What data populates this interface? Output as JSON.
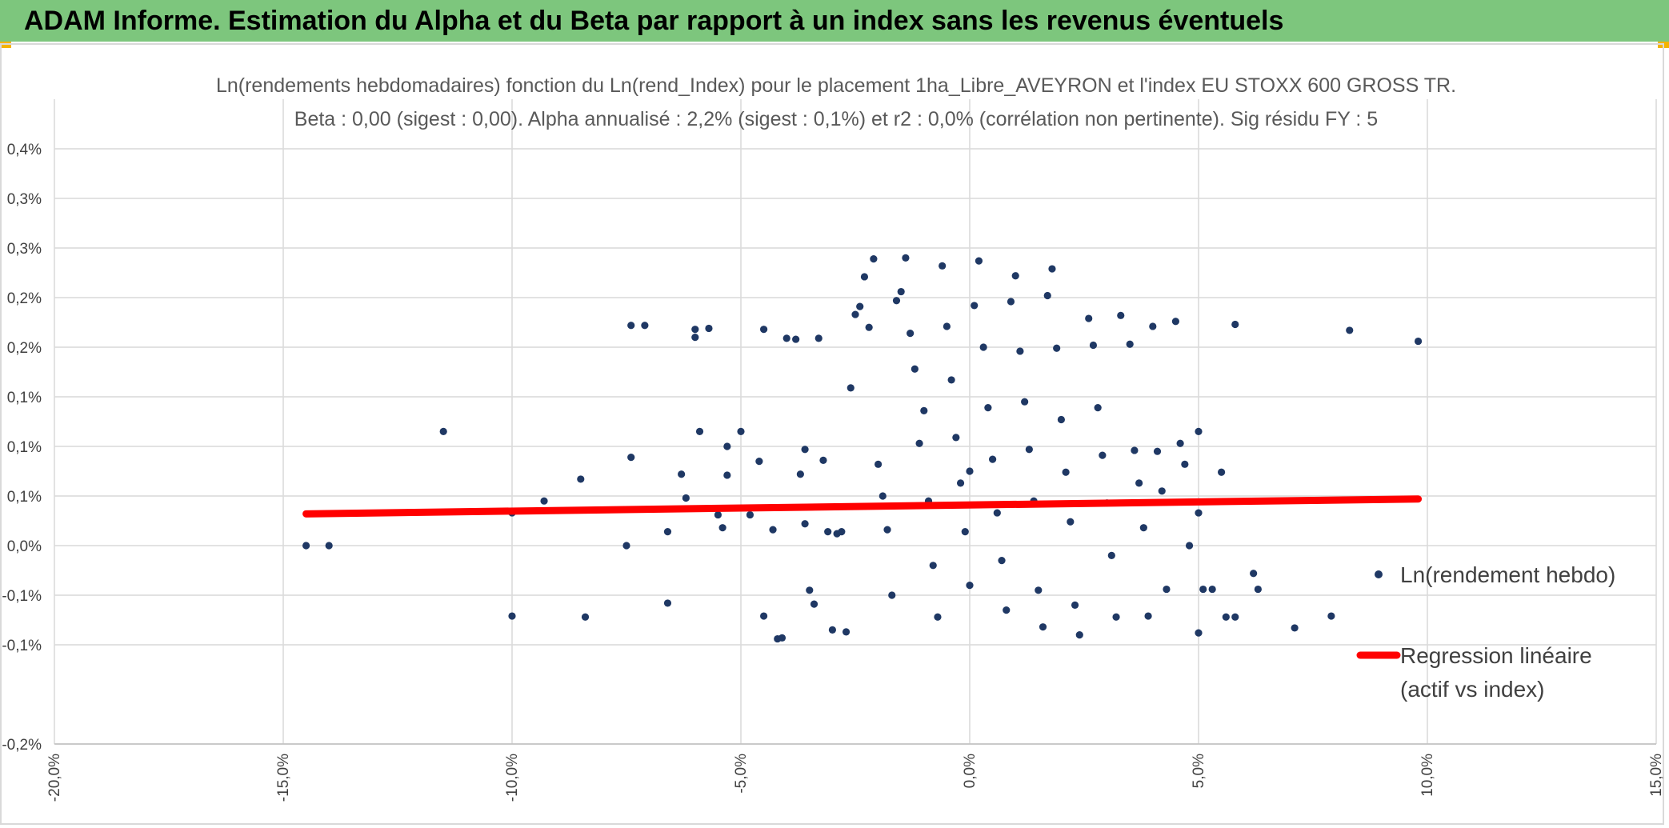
{
  "banner": {
    "title": "ADAM Informe. Estimation du Alpha et du Beta par rapport à un index sans les revenus éventuels",
    "color": "#7dc67d"
  },
  "chart_data": {
    "type": "scatter",
    "title": "Ln(rendements hebdomadaires) fonction du Ln(rend_Index) pour le placement 1ha_Libre_AVEYRON et l'index EU STOXX 600 GROSS TR.",
    "subtitle": "Beta : 0,00 (sigest : 0,00). Alpha annualisé : 2,2% (sigest : 0,1%) et r2 : 0,0% (corrélation non pertinente). Sig résidu FY : 5",
    "xlabel": "",
    "ylabel": "",
    "xlim": [
      -0.2,
      0.15
    ],
    "ylim": [
      -0.002,
      0.0045
    ],
    "x_ticks": [
      -0.2,
      -0.15,
      -0.1,
      -0.05,
      0.0,
      0.05,
      0.1,
      0.15
    ],
    "x_tick_labels": [
      "-20,0%",
      "-15,0%",
      "-10,0%",
      "-5,0%",
      "0,0%",
      "5,0%",
      "10,0%",
      "15,0%"
    ],
    "y_ticks": [
      -0.002,
      -0.001,
      -0.0005,
      0.0,
      0.0005,
      0.001,
      0.0015,
      0.002,
      0.0025,
      0.003,
      0.0035,
      0.004
    ],
    "y_tick_labels": [
      "-0,2%",
      "-0,1%",
      "-0,1%",
      "0,0%",
      "0,1%",
      "0,1%",
      "0,1%",
      "0,2%",
      "0,2%",
      "0,3%",
      "0,3%",
      "0,4%"
    ],
    "grid": true,
    "legend_position": "right",
    "series": [
      {
        "name": "Ln(rendement hebdo)",
        "kind": "scatter",
        "color": "#1f3864",
        "points": [
          [
            -0.145,
            0.0
          ],
          [
            -0.14,
            0.0
          ],
          [
            -0.115,
            0.00115
          ],
          [
            -0.1,
            0.00033
          ],
          [
            -0.1,
            -0.00071
          ],
          [
            -0.093,
            0.00045
          ],
          [
            -0.085,
            0.00067
          ],
          [
            -0.084,
            -0.00072
          ],
          [
            -0.075,
            0.0
          ],
          [
            -0.074,
            0.00089
          ],
          [
            -0.074,
            0.00222
          ],
          [
            -0.071,
            0.00222
          ],
          [
            -0.066,
            0.00014
          ],
          [
            -0.066,
            -0.00058
          ],
          [
            -0.063,
            0.00072
          ],
          [
            -0.062,
            0.00048
          ],
          [
            -0.06,
            0.0021
          ],
          [
            -0.06,
            0.00218
          ],
          [
            -0.059,
            0.00115
          ],
          [
            -0.057,
            0.00219
          ],
          [
            -0.055,
            0.00031
          ],
          [
            -0.054,
            0.00018
          ],
          [
            -0.053,
            0.001
          ],
          [
            -0.053,
            0.00071
          ],
          [
            -0.05,
            0.00115
          ],
          [
            -0.048,
            0.00031
          ],
          [
            -0.046,
            0.00085
          ],
          [
            -0.045,
            0.00218
          ],
          [
            -0.045,
            -0.00071
          ],
          [
            -0.043,
            0.00016
          ],
          [
            -0.042,
            -0.00094
          ],
          [
            -0.041,
            -0.00093
          ],
          [
            -0.04,
            0.00209
          ],
          [
            -0.038,
            0.00208
          ],
          [
            -0.037,
            0.00072
          ],
          [
            -0.036,
            0.00097
          ],
          [
            -0.036,
            0.00022
          ],
          [
            -0.035,
            -0.00045
          ],
          [
            -0.034,
            -0.00059
          ],
          [
            -0.033,
            0.00209
          ],
          [
            -0.032,
            0.00086
          ],
          [
            -0.031,
            0.00014
          ],
          [
            -0.03,
            -0.00085
          ],
          [
            -0.029,
            0.00012
          ],
          [
            -0.028,
            0.00014
          ],
          [
            -0.027,
            -0.00087
          ],
          [
            -0.026,
            0.00159
          ],
          [
            -0.025,
            0.00233
          ],
          [
            -0.024,
            0.00241
          ],
          [
            -0.023,
            0.00271
          ],
          [
            -0.022,
            0.0022
          ],
          [
            -0.021,
            0.00289
          ],
          [
            -0.02,
            0.00082
          ],
          [
            -0.019,
            0.0005
          ],
          [
            -0.018,
            0.00016
          ],
          [
            -0.017,
            -0.0005
          ],
          [
            -0.016,
            0.00247
          ],
          [
            -0.015,
            0.00256
          ],
          [
            -0.014,
            0.0029
          ],
          [
            -0.013,
            0.00214
          ],
          [
            -0.012,
            0.00178
          ],
          [
            -0.011,
            0.00103
          ],
          [
            -0.01,
            0.00136
          ],
          [
            -0.009,
            0.00045
          ],
          [
            -0.008,
            -0.0002
          ],
          [
            -0.007,
            -0.00072
          ],
          [
            -0.006,
            0.00282
          ],
          [
            -0.005,
            0.00221
          ],
          [
            -0.004,
            0.00167
          ],
          [
            -0.003,
            0.00109
          ],
          [
            -0.002,
            0.00063
          ],
          [
            -0.001,
            0.00014
          ],
          [
            0.0,
            -0.0004
          ],
          [
            0.0,
            0.00075
          ],
          [
            0.001,
            0.00242
          ],
          [
            0.002,
            0.00287
          ],
          [
            0.003,
            0.002
          ],
          [
            0.004,
            0.00139
          ],
          [
            0.005,
            0.00087
          ],
          [
            0.006,
            0.00033
          ],
          [
            0.007,
            -0.00015
          ],
          [
            0.008,
            -0.00065
          ],
          [
            0.009,
            0.00246
          ],
          [
            0.01,
            0.00272
          ],
          [
            0.011,
            0.00196
          ],
          [
            0.012,
            0.00145
          ],
          [
            0.013,
            0.00097
          ],
          [
            0.014,
            0.00045
          ],
          [
            0.015,
            -0.00045
          ],
          [
            0.016,
            -0.00082
          ],
          [
            0.017,
            0.00252
          ],
          [
            0.018,
            0.00279
          ],
          [
            0.019,
            0.00199
          ],
          [
            0.02,
            0.00127
          ],
          [
            0.021,
            0.00074
          ],
          [
            0.022,
            0.00024
          ],
          [
            0.023,
            -0.0006
          ],
          [
            0.024,
            -0.0009
          ],
          [
            0.026,
            0.00229
          ],
          [
            0.027,
            0.00202
          ],
          [
            0.028,
            0.00139
          ],
          [
            0.029,
            0.00091
          ],
          [
            0.03,
            0.00043
          ],
          [
            0.031,
            -0.0001
          ],
          [
            0.032,
            -0.00072
          ],
          [
            0.033,
            0.00232
          ],
          [
            0.035,
            0.00203
          ],
          [
            0.036,
            0.00096
          ],
          [
            0.037,
            0.00063
          ],
          [
            0.038,
            0.00018
          ],
          [
            0.039,
            -0.00071
          ],
          [
            0.04,
            0.00221
          ],
          [
            0.041,
            0.00095
          ],
          [
            0.042,
            0.00055
          ],
          [
            0.043,
            -0.00044
          ],
          [
            0.045,
            0.00226
          ],
          [
            0.046,
            0.00103
          ],
          [
            0.047,
            0.00082
          ],
          [
            0.048,
            0.0
          ],
          [
            0.05,
            0.00115
          ],
          [
            0.05,
            0.00033
          ],
          [
            0.05,
            -0.00088
          ],
          [
            0.051,
            -0.00044
          ],
          [
            0.053,
            -0.00044
          ],
          [
            0.055,
            0.00074
          ],
          [
            0.056,
            -0.00072
          ],
          [
            0.058,
            -0.00072
          ],
          [
            0.058,
            0.00223
          ],
          [
            0.062,
            -0.00028
          ],
          [
            0.063,
            -0.00044
          ],
          [
            0.071,
            -0.00083
          ],
          [
            0.079,
            -0.00071
          ],
          [
            0.083,
            0.00217
          ],
          [
            0.098,
            0.00206
          ]
        ]
      },
      {
        "name": "Regression linéaire (actif vs index)",
        "legend_lines": [
          "Regression linéaire",
          "(actif vs index)"
        ],
        "kind": "line",
        "color": "#ff0000",
        "points": [
          [
            -0.145,
            0.00032
          ],
          [
            0.098,
            0.00047
          ]
        ]
      }
    ]
  }
}
